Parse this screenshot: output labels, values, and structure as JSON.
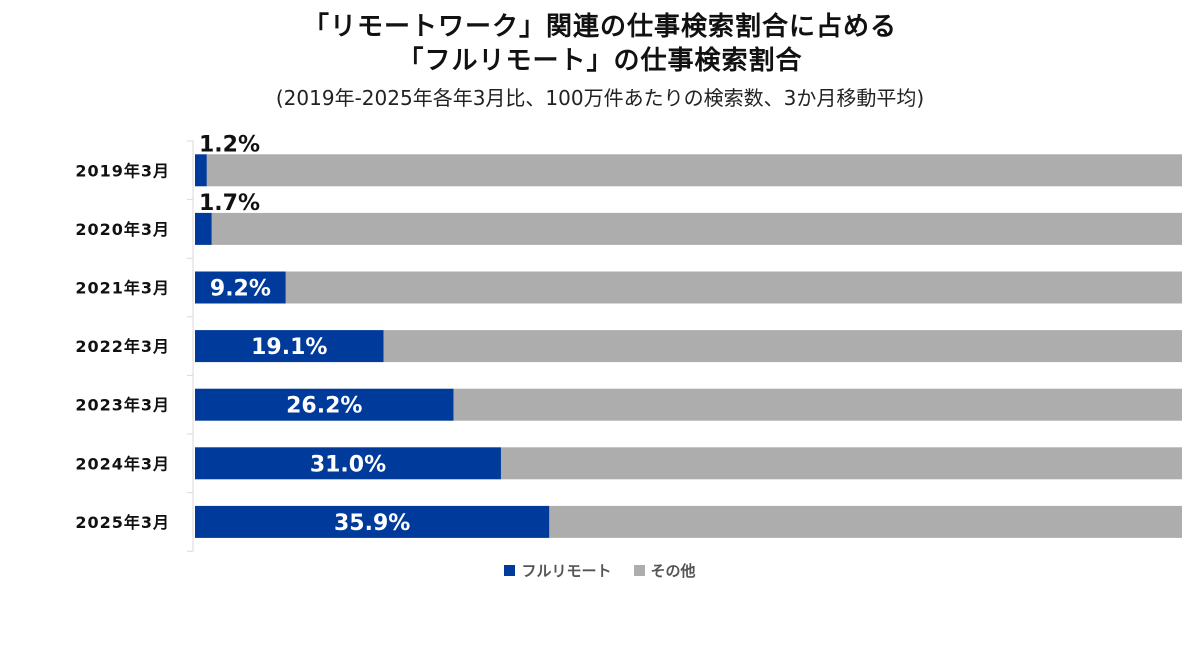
{
  "chart_data": {
    "type": "bar",
    "stacked": true,
    "orientation": "horizontal",
    "title": "「リモートワーク」関連の仕事検索割合に占める",
    "title_line2": "「フルリモート」の仕事検索割合",
    "subtitle": "(2019年-2025年各年3月比、100万件あたりの検索数、3か月移動平均)",
    "categories": [
      "2019年3月",
      "2020年3月",
      "2021年3月",
      "2022年3月",
      "2023年3月",
      "2024年3月",
      "2025年3月"
    ],
    "series": [
      {
        "name": "フルリモート",
        "color": "#003a9b",
        "values": [
          1.2,
          1.7,
          9.2,
          19.1,
          26.2,
          31.0,
          35.9
        ],
        "labels": [
          "1.2%",
          "1.7%",
          "9.2%",
          "19.1%",
          "26.2%",
          "31.0%",
          "35.9%"
        ]
      },
      {
        "name": "その他",
        "color": "#adadad",
        "values": [
          98.8,
          98.3,
          90.8,
          80.9,
          73.8,
          69.0,
          64.1
        ]
      }
    ],
    "xlim": [
      0,
      100
    ],
    "grid": false,
    "legend_position": "bottom"
  }
}
